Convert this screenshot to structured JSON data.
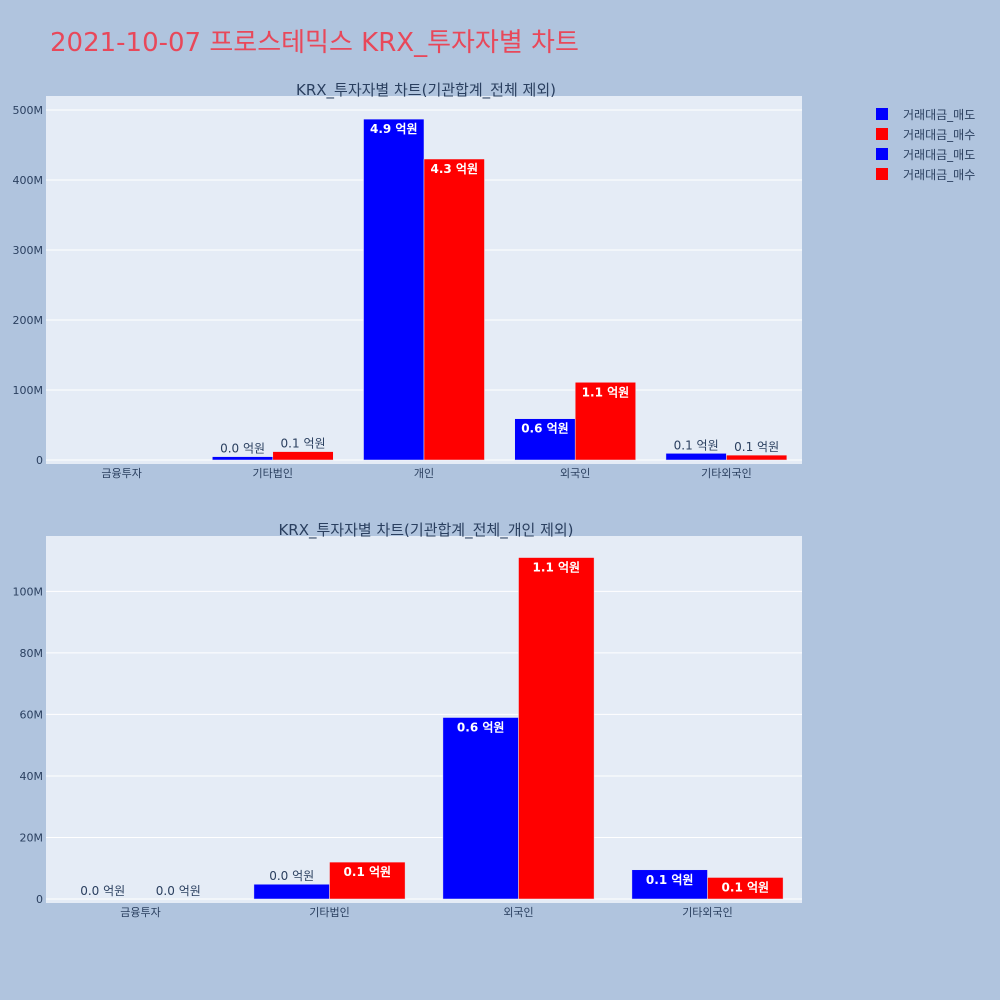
{
  "title": "2021-10-07 프로스테믹스 KRX_투자자별 차트",
  "colors": {
    "sell": "#0000ff",
    "buy": "#ff0000"
  },
  "legend": [
    {
      "name": "거래대금_매도",
      "color": "#0000ff"
    },
    {
      "name": "거래대금_매수",
      "color": "#ff0000"
    },
    {
      "name": "거래대금_매도",
      "color": "#0000ff"
    },
    {
      "name": "거래대금_매수",
      "color": "#ff0000"
    }
  ],
  "chart_data": [
    {
      "type": "bar",
      "title": "KRX_투자자별 차트(기관합계_전체 제외)",
      "categories": [
        "금융투자",
        "기타법인",
        "개인",
        "외국인",
        "기타외국인"
      ],
      "ylim": [
        0,
        520000000
      ],
      "yticks": [
        0,
        100000000,
        200000000,
        300000000,
        400000000,
        500000000
      ],
      "ytick_labels": [
        "0",
        "100M",
        "200M",
        "300M",
        "400M",
        "500M"
      ],
      "series": [
        {
          "name": "거래대금_매도",
          "color": "#0000ff",
          "values": [
            0,
            4800000,
            487000000,
            59000000,
            9500000
          ],
          "labels": [
            "",
            "0.0 억원",
            "4.9 억원",
            "0.6 억원",
            "0.1 억원"
          ],
          "label_inside": [
            false,
            false,
            true,
            true,
            false
          ]
        },
        {
          "name": "거래대금_매수",
          "color": "#ff0000",
          "values": [
            0,
            12000000,
            430000000,
            111000000,
            7000000
          ],
          "labels": [
            "",
            "0.1 억원",
            "4.3 억원",
            "1.1 억원",
            "0.1 억원"
          ],
          "label_inside": [
            false,
            false,
            true,
            true,
            false
          ]
        }
      ]
    },
    {
      "type": "bar",
      "title": "KRX_투자자별 차트(기관합계_전체_개인 제외)",
      "categories": [
        "금융투자",
        "기타법인",
        "외국인",
        "기타외국인"
      ],
      "ylim": [
        0,
        118000000
      ],
      "yticks": [
        0,
        20000000,
        40000000,
        60000000,
        80000000,
        100000000
      ],
      "ytick_labels": [
        "0",
        "20M",
        "40M",
        "60M",
        "80M",
        "100M"
      ],
      "series": [
        {
          "name": "거래대금_매도",
          "color": "#0000ff",
          "values": [
            0,
            4800000,
            59000000,
            9500000
          ],
          "labels": [
            "0.0 억원",
            "0.0 억원",
            "0.6 억원",
            "0.1 억원"
          ],
          "label_inside": [
            false,
            false,
            true,
            true
          ]
        },
        {
          "name": "거래대금_매수",
          "color": "#ff0000",
          "values": [
            0,
            12000000,
            111000000,
            7000000
          ],
          "labels": [
            "0.0 억원",
            "0.1 억원",
            "1.1 억원",
            "0.1 억원"
          ],
          "label_inside": [
            false,
            true,
            true,
            true
          ]
        }
      ]
    }
  ]
}
